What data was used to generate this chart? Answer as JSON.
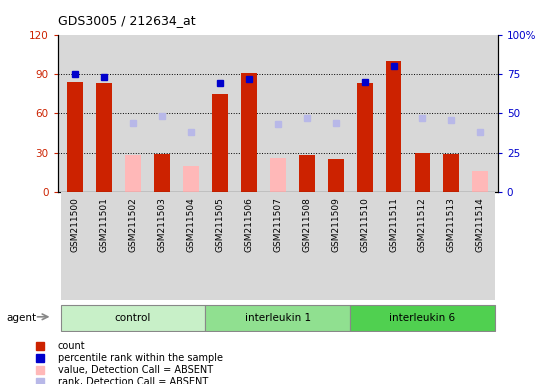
{
  "title": "GDS3005 / 212634_at",
  "samples": [
    "GSM211500",
    "GSM211501",
    "GSM211502",
    "GSM211503",
    "GSM211504",
    "GSM211505",
    "GSM211506",
    "GSM211507",
    "GSM211508",
    "GSM211509",
    "GSM211510",
    "GSM211511",
    "GSM211512",
    "GSM211513",
    "GSM211514"
  ],
  "groups": [
    {
      "label": "control",
      "color": "#c8f0c8",
      "indices": [
        0,
        1,
        2,
        3,
        4
      ]
    },
    {
      "label": "interleukin 1",
      "color": "#90e090",
      "indices": [
        5,
        6,
        7,
        8,
        9
      ]
    },
    {
      "label": "interleukin 6",
      "color": "#50d050",
      "indices": [
        10,
        11,
        12,
        13,
        14
      ]
    }
  ],
  "count_values": [
    84,
    83,
    null,
    29,
    null,
    75,
    91,
    null,
    28,
    25,
    83,
    100,
    30,
    29,
    null
  ],
  "count_absent": [
    null,
    null,
    28,
    null,
    20,
    null,
    null,
    26,
    null,
    null,
    null,
    null,
    null,
    null,
    16
  ],
  "rank_absent": [
    null,
    null,
    44,
    48,
    38,
    null,
    null,
    43,
    47,
    44,
    null,
    null,
    47,
    46,
    38
  ],
  "percentile_present": [
    75,
    73,
    null,
    null,
    null,
    69,
    72,
    null,
    null,
    null,
    70,
    80,
    null,
    null,
    null
  ],
  "ylim_left": [
    0,
    120
  ],
  "ylim_right": [
    0,
    100
  ],
  "yticks_left": [
    0,
    30,
    60,
    90,
    120
  ],
  "yticks_right": [
    0,
    25,
    50,
    75,
    100
  ],
  "yticklabels_left": [
    "0",
    "30",
    "60",
    "90",
    "120"
  ],
  "yticklabels_right": [
    "0",
    "25",
    "50",
    "75",
    "100%"
  ],
  "bar_color_red": "#cc2200",
  "bar_color_pink": "#ffb8b8",
  "dot_color_blue": "#0000cc",
  "dot_color_lightblue": "#b8b8e8",
  "plot_bg_color": "#d8d8d8",
  "agent_label": "agent",
  "legend_items": [
    {
      "color": "#cc2200",
      "label": "count"
    },
    {
      "color": "#0000cc",
      "label": "percentile rank within the sample"
    },
    {
      "color": "#ffb8b8",
      "label": "value, Detection Call = ABSENT"
    },
    {
      "color": "#b8b8e8",
      "label": "rank, Detection Call = ABSENT"
    }
  ]
}
